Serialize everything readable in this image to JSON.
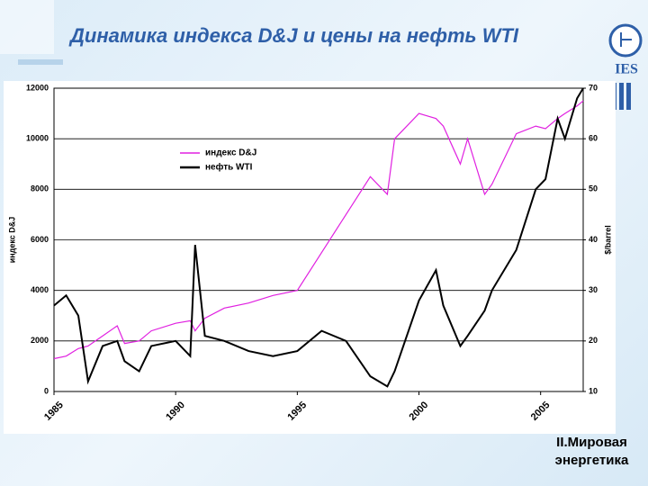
{
  "chart_data": {
    "type": "line",
    "title": "Динамика индекса D&J и цены на нефть WTI",
    "y_label": "индекс D&J",
    "y2_label": "$/barrel",
    "footer": "II.Мировая энергетика",
    "x": [
      1985,
      1985.5,
      1986,
      1986.4,
      1987,
      1987.6,
      1987.9,
      1988.5,
      1989,
      1990,
      1990.6,
      1990.8,
      1991.2,
      1992,
      1993,
      1994,
      1995,
      1996,
      1997,
      1998,
      1998.7,
      1999,
      2000,
      2000.7,
      2001,
      2001.7,
      2002,
      2002.7,
      2003,
      2004,
      2004.8,
      2005.2,
      2005.7,
      2006,
      2006.5,
      2006.75
    ],
    "series": [
      {
        "name": "индекс D&J",
        "color": "#e020e0",
        "values": [
          1300,
          1400,
          1700,
          1800,
          2200,
          2600,
          1900,
          2000,
          2400,
          2700,
          2800,
          2400,
          2900,
          3300,
          3500,
          3800,
          4000,
          5500,
          7000,
          8500,
          7800,
          10000,
          11000,
          10800,
          10500,
          9000,
          10000,
          7800,
          8200,
          10200,
          10500,
          10400,
          10800,
          11000,
          11300,
          11500
        ]
      },
      {
        "name": "нефть WTI",
        "color": "#000000",
        "axis": "y2",
        "values": [
          27,
          29,
          25,
          12,
          19,
          20,
          16,
          14,
          19,
          20,
          17,
          39,
          21,
          20,
          18,
          17,
          18,
          22,
          20,
          13,
          11,
          14,
          28,
          34,
          27,
          19,
          21,
          26,
          30,
          38,
          50,
          52,
          64,
          60,
          68,
          70
        ]
      }
    ],
    "xlim": [
      1985,
      2006.75
    ],
    "xticks": [
      1985,
      1990,
      1995,
      2000,
      2005
    ],
    "ylim": [
      0,
      12000
    ],
    "yticks": [
      0,
      2000,
      4000,
      6000,
      8000,
      10000,
      12000
    ],
    "y2lim": [
      10,
      70
    ],
    "y2ticks": [
      10,
      20,
      30,
      40,
      50,
      60,
      70
    ],
    "grid": true
  }
}
